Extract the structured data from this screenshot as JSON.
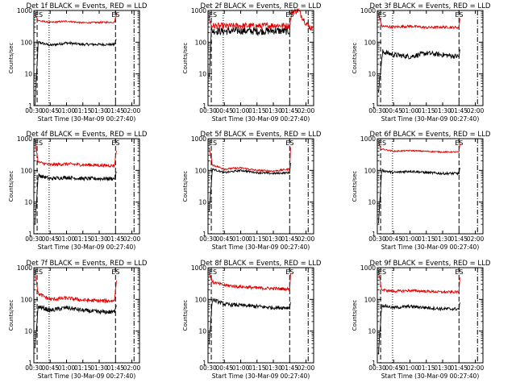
{
  "chart_data": [
    {
      "type": "line",
      "title": "Det 1f BLACK = Events, RED = LLD",
      "xlabel": "Start Time (30-Mar-09 00:27:40)",
      "ylabel": "Counts/sec",
      "y_scale": "log",
      "ylim": [
        1,
        1000
      ],
      "xlim": [
        "00:30",
        "02:07"
      ],
      "x_ticks": [
        "00:30",
        "00:45",
        "01:00",
        "01:15",
        "01:30",
        "01:45",
        "02:00"
      ],
      "y_ticks": [
        "1",
        "10",
        "100",
        "1000"
      ],
      "markers": {
        "start": "ES",
        "end": "ES"
      },
      "series": [
        {
          "color": "#000000",
          "x": [
            "00:31",
            "00:34",
            "00:45",
            "01:00",
            "01:15",
            "01:30",
            "01:44",
            "01:46"
          ],
          "values": [
            1,
            100,
            80,
            95,
            85,
            85,
            85,
            130
          ],
          "noise": 0.04
        },
        {
          "color": "#e00000",
          "x": [
            "00:31",
            "00:34",
            "00:45",
            "01:00",
            "01:15",
            "01:30",
            "01:44",
            "01:46"
          ],
          "values": [
            800,
            480,
            420,
            460,
            410,
            420,
            430,
            800
          ],
          "noise": 0.025
        }
      ]
    },
    {
      "type": "line",
      "title": "Det 2f BLACK = Events, RED = LLD",
      "xlabel": "Start Time (30-Mar-09 00:27:40)",
      "ylabel": "Counts/sec",
      "y_scale": "log",
      "ylim": [
        1,
        1000
      ],
      "xlim": [
        "00:30",
        "02:07"
      ],
      "x_ticks": [
        "00:30",
        "00:45",
        "01:00",
        "01:15",
        "01:30",
        "01:45",
        "02:00"
      ],
      "y_ticks": [
        "1",
        "10",
        "100",
        "1000"
      ],
      "markers": {
        "start": "ES",
        "end": "ES"
      },
      "series": [
        {
          "color": "#000000",
          "x": [
            "00:31",
            "00:33",
            "00:45",
            "01:00",
            "01:15",
            "01:30",
            "01:45",
            "01:46"
          ],
          "values": [
            7,
            230,
            220,
            230,
            220,
            230,
            220,
            500
          ],
          "noise": 0.12
        },
        {
          "color": "#e00000",
          "x": [
            "00:31",
            "00:33",
            "00:45",
            "01:00",
            "01:15",
            "01:30",
            "01:45",
            "01:47",
            "01:53",
            "02:00",
            "02:06"
          ],
          "values": [
            600,
            330,
            320,
            330,
            320,
            340,
            330,
            900,
            1000,
            400,
            250
          ],
          "noise": 0.1
        }
      ]
    },
    {
      "type": "line",
      "title": "Det 3f BLACK = Events, RED = LLD",
      "xlabel": "Start Time (30-Mar-09 00:27:40)",
      "ylabel": "Counts/sec",
      "y_scale": "log",
      "ylim": [
        1,
        1000
      ],
      "xlim": [
        "00:30",
        "02:07"
      ],
      "x_ticks": [
        "00:30",
        "00:45",
        "01:00",
        "01:15",
        "01:30",
        "01:45",
        "02:00"
      ],
      "y_ticks": [
        "1",
        "10",
        "100",
        "1000"
      ],
      "markers": {
        "start": "ES",
        "end": "ES"
      },
      "series": [
        {
          "color": "#000000",
          "x": [
            "00:31",
            "00:35",
            "00:45",
            "01:00",
            "01:15",
            "01:30",
            "01:45",
            "01:46"
          ],
          "values": [
            3,
            50,
            40,
            35,
            45,
            40,
            35,
            60
          ],
          "noise": 0.08
        },
        {
          "color": "#e00000",
          "x": [
            "00:31",
            "00:34",
            "00:45",
            "01:00",
            "01:15",
            "01:30",
            "01:45",
            "01:46"
          ],
          "values": [
            800,
            320,
            300,
            320,
            290,
            300,
            290,
            700
          ],
          "noise": 0.04
        }
      ]
    },
    {
      "type": "line",
      "title": "Det 4f BLACK = Events, RED = LLD",
      "xlabel": "Start Time (30-Mar-09 00:27:40)",
      "ylabel": "Counts/sec",
      "y_scale": "log",
      "ylim": [
        1,
        1000
      ],
      "xlim": [
        "00:30",
        "02:07"
      ],
      "x_ticks": [
        "00:30",
        "00:45",
        "01:00",
        "01:15",
        "01:30",
        "01:45",
        "02:00"
      ],
      "y_ticks": [
        "1",
        "10",
        "100",
        "1000"
      ],
      "markers": {
        "start": "ES",
        "end": "ES"
      },
      "series": [
        {
          "color": "#000000",
          "x": [
            "00:31",
            "00:34",
            "00:45",
            "01:00",
            "01:15",
            "01:30",
            "01:44",
            "01:46"
          ],
          "values": [
            2,
            70,
            55,
            60,
            55,
            55,
            55,
            90
          ],
          "noise": 0.06
        },
        {
          "color": "#e00000",
          "x": [
            "00:31",
            "00:34",
            "00:45",
            "01:00",
            "01:15",
            "01:30",
            "01:44",
            "01:46"
          ],
          "values": [
            900,
            180,
            150,
            160,
            150,
            145,
            140,
            500
          ],
          "noise": 0.05
        }
      ]
    },
    {
      "type": "line",
      "title": "Det 5f BLACK = Events, RED = LLD",
      "xlabel": "Start Time (30-Mar-09 00:27:40)",
      "ylabel": "Counts/sec",
      "y_scale": "log",
      "ylim": [
        1,
        1000
      ],
      "xlim": [
        "00:30",
        "02:07"
      ],
      "x_ticks": [
        "00:30",
        "00:45",
        "01:00",
        "01:15",
        "01:30",
        "01:45",
        "02:00"
      ],
      "y_ticks": [
        "1",
        "10",
        "100",
        "1000"
      ],
      "markers": {
        "start": "ES",
        "end": "ES"
      },
      "series": [
        {
          "color": "#000000",
          "x": [
            "00:31",
            "00:34",
            "00:45",
            "01:00",
            "01:15",
            "01:30",
            "01:45",
            "01:46"
          ],
          "values": [
            5,
            110,
            85,
            100,
            85,
            80,
            85,
            200
          ],
          "noise": 0.03
        },
        {
          "color": "#e00000",
          "x": [
            "00:31",
            "00:34",
            "00:45",
            "01:00",
            "01:15",
            "01:30",
            "01:45",
            "01:46"
          ],
          "values": [
            500,
            150,
            110,
            120,
            100,
            95,
            110,
            800
          ],
          "noise": 0.03
        }
      ]
    },
    {
      "type": "line",
      "title": "Det 6f BLACK = Events, RED = LLD",
      "xlabel": "Start Time (30-Mar-09 00:27:40)",
      "ylabel": "Counts/sec",
      "y_scale": "log",
      "ylim": [
        1,
        1000
      ],
      "xlim": [
        "00:30",
        "02:07"
      ],
      "x_ticks": [
        "00:30",
        "00:45",
        "01:00",
        "01:15",
        "01:30",
        "01:45",
        "02:00"
      ],
      "y_ticks": [
        "1",
        "10",
        "100",
        "1000"
      ],
      "markers": {
        "start": "ES",
        "end": "ES"
      },
      "series": [
        {
          "color": "#000000",
          "x": [
            "00:31",
            "00:34",
            "00:45",
            "01:00",
            "01:15",
            "01:30",
            "01:45",
            "01:46"
          ],
          "values": [
            2,
            100,
            85,
            95,
            85,
            80,
            80,
            130
          ],
          "noise": 0.04
        },
        {
          "color": "#e00000",
          "x": [
            "00:31",
            "00:33",
            "00:45",
            "01:00",
            "01:15",
            "01:30",
            "01:45",
            "01:46"
          ],
          "values": [
            800,
            480,
            400,
            420,
            400,
            380,
            380,
            800
          ],
          "noise": 0.02
        }
      ]
    },
    {
      "type": "line",
      "title": "Det 7f BLACK = Events, RED = LLD",
      "xlabel": "Start Time (30-Mar-09 00:27:40)",
      "ylabel": "Counts/sec",
      "y_scale": "log",
      "ylim": [
        1,
        1000
      ],
      "xlim": [
        "00:30",
        "02:07"
      ],
      "x_ticks": [
        "00:30",
        "00:45",
        "01:00",
        "01:15",
        "01:30",
        "01:45",
        "02:00"
      ],
      "y_ticks": [
        "1",
        "10",
        "100",
        "1000"
      ],
      "markers": {
        "start": "ES",
        "end": "ES"
      },
      "series": [
        {
          "color": "#000000",
          "x": [
            "00:31",
            "00:34",
            "00:45",
            "01:00",
            "01:15",
            "01:30",
            "01:44",
            "01:46"
          ],
          "values": [
            3,
            60,
            45,
            55,
            45,
            40,
            40,
            80
          ],
          "noise": 0.07
        },
        {
          "color": "#e00000",
          "x": [
            "00:31",
            "00:34",
            "00:45",
            "01:00",
            "01:15",
            "01:30",
            "01:44",
            "01:46"
          ],
          "values": [
            800,
            150,
            100,
            110,
            95,
            90,
            90,
            500
          ],
          "noise": 0.06
        }
      ]
    },
    {
      "type": "line",
      "title": "Det 8f BLACK = Events, RED = LLD",
      "xlabel": "Start Time (30-Mar-09 00:27:40)",
      "ylabel": "Counts/sec",
      "y_scale": "log",
      "ylim": [
        1,
        1000
      ],
      "xlim": [
        "00:30",
        "02:07"
      ],
      "x_ticks": [
        "00:30",
        "00:45",
        "01:00",
        "01:15",
        "01:30",
        "01:45",
        "02:00"
      ],
      "y_ticks": [
        "1",
        "10",
        "100",
        "1000"
      ],
      "markers": {
        "start": "ES",
        "end": "ES"
      },
      "series": [
        {
          "color": "#000000",
          "x": [
            "00:31",
            "00:34",
            "00:45",
            "01:00",
            "01:15",
            "01:30",
            "01:45",
            "01:46"
          ],
          "values": [
            4,
            100,
            70,
            65,
            60,
            55,
            55,
            90
          ],
          "noise": 0.06
        },
        {
          "color": "#e00000",
          "x": [
            "00:31",
            "00:34",
            "00:45",
            "01:00",
            "01:15",
            "01:30",
            "01:45",
            "01:46"
          ],
          "values": [
            700,
            350,
            280,
            250,
            230,
            220,
            210,
            800
          ],
          "noise": 0.05
        }
      ]
    },
    {
      "type": "line",
      "title": "Det 9f BLACK = Events, RED = LLD",
      "xlabel": "Start Time (30-Mar-09 00:27:40)",
      "ylabel": "Counts/sec",
      "y_scale": "log",
      "ylim": [
        1,
        1000
      ],
      "xlim": [
        "00:30",
        "02:07"
      ],
      "x_ticks": [
        "00:30",
        "00:45",
        "01:00",
        "01:15",
        "01:30",
        "01:45",
        "02:00"
      ],
      "y_ticks": [
        "1",
        "10",
        "100",
        "1000"
      ],
      "markers": {
        "start": "ES",
        "end": "ES"
      },
      "series": [
        {
          "color": "#000000",
          "x": [
            "00:31",
            "00:34",
            "00:45",
            "01:00",
            "01:15",
            "01:30",
            "01:45",
            "01:46"
          ],
          "values": [
            2,
            65,
            55,
            60,
            55,
            50,
            50,
            80
          ],
          "noise": 0.05
        },
        {
          "color": "#e00000",
          "x": [
            "00:31",
            "00:34",
            "00:45",
            "01:00",
            "01:15",
            "01:30",
            "01:45",
            "01:46"
          ],
          "values": [
            800,
            200,
            180,
            190,
            180,
            170,
            170,
            700
          ],
          "noise": 0.04
        }
      ]
    }
  ]
}
